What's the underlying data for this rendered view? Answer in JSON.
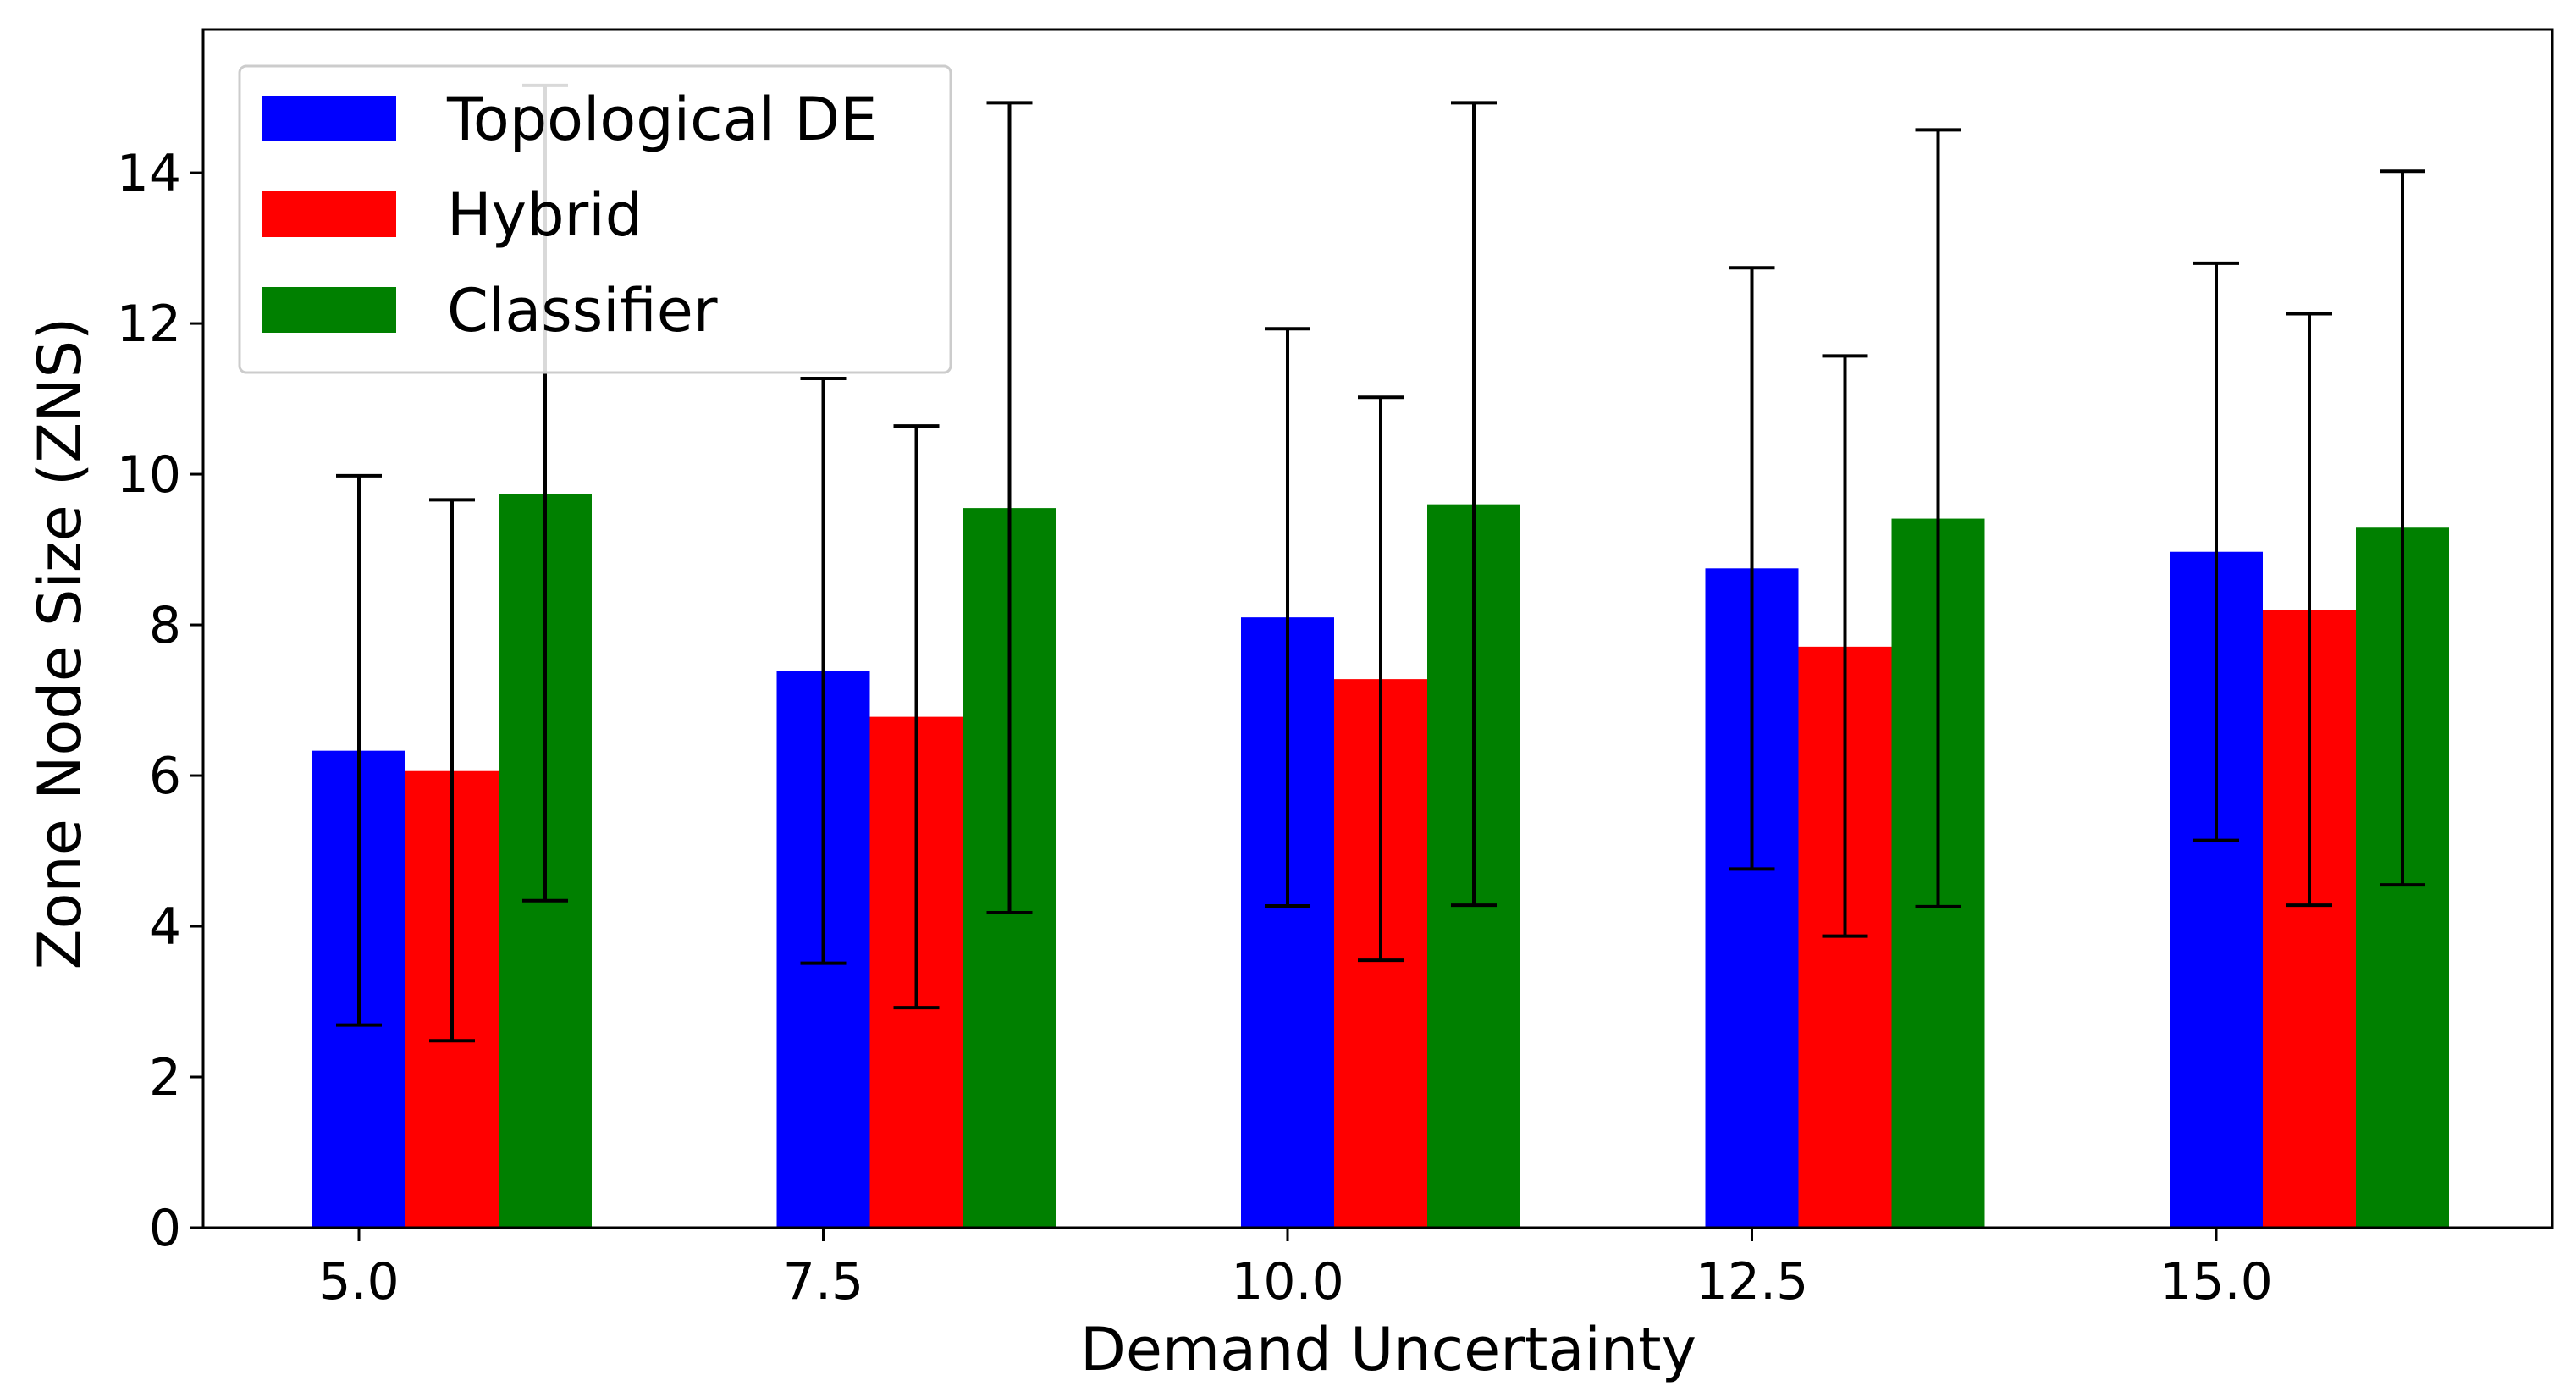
{
  "chart_data": {
    "type": "bar",
    "title": "",
    "xlabel": "Demand Uncertainty",
    "ylabel": "Zone Node Size (ZNS)",
    "categories": [
      "5.0",
      "7.5",
      "10.0",
      "12.5",
      "15.0"
    ],
    "ylim": [
      0,
      15.9
    ],
    "yticks": [
      0,
      2,
      4,
      6,
      8,
      10,
      12,
      14
    ],
    "grid": false,
    "legend": {
      "placement": "top-left"
    },
    "series": [
      {
        "name": "Topological DE",
        "color": "#0000ff",
        "values": [
          6.33,
          7.39,
          8.1,
          8.75,
          8.97
        ],
        "err_low": [
          2.69,
          3.51,
          4.27,
          4.76,
          5.14
        ],
        "err_high": [
          9.98,
          11.27,
          11.93,
          12.74,
          12.8
        ]
      },
      {
        "name": "Hybrid",
        "color": "#ff0000",
        "values": [
          6.06,
          6.78,
          7.28,
          7.71,
          8.2
        ],
        "err_low": [
          2.48,
          2.92,
          3.55,
          3.87,
          4.28
        ],
        "err_high": [
          9.66,
          10.64,
          11.02,
          11.57,
          12.13
        ]
      },
      {
        "name": "Classifier",
        "color": "#008000",
        "values": [
          9.74,
          9.55,
          9.6,
          9.41,
          9.29
        ],
        "err_low": [
          4.34,
          4.18,
          4.28,
          4.26,
          4.55
        ],
        "err_high": [
          15.16,
          14.93,
          14.93,
          14.57,
          14.02
        ]
      }
    ]
  }
}
